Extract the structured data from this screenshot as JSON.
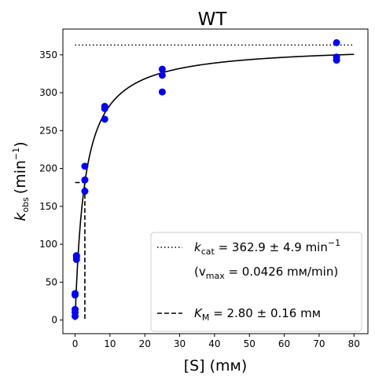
{
  "chart_data": {
    "type": "scatter",
    "title": "WT",
    "xlabel": "[S] (mм)",
    "ylabel": {
      "symbol": "k",
      "subscript": "obs",
      "unit_prefix": "(min",
      "unit_exp": "−1",
      "unit_suffix": ")"
    },
    "xlim": [
      -3.5,
      84
    ],
    "ylim": [
      -18,
      384
    ],
    "xticks": [
      0,
      10,
      20,
      30,
      40,
      50,
      60,
      70,
      80
    ],
    "yticks": [
      0,
      50,
      100,
      150,
      200,
      250,
      300,
      350
    ],
    "grid": false,
    "legend_position": "lower-right",
    "series": [
      {
        "type": "scatter",
        "color": "#0000ff",
        "points": [
          [
            0,
            5
          ],
          [
            0,
            10
          ],
          [
            0,
            14
          ],
          [
            0,
            33
          ],
          [
            0,
            35
          ],
          [
            0.4,
            80
          ],
          [
            0.4,
            83
          ],
          [
            0.4,
            85
          ],
          [
            2.8,
            170
          ],
          [
            2.8,
            185
          ],
          [
            2.8,
            203
          ],
          [
            8.5,
            265
          ],
          [
            8.5,
            279
          ],
          [
            8.5,
            282
          ],
          [
            25,
            301
          ],
          [
            25,
            323
          ],
          [
            25,
            331
          ],
          [
            75,
            343
          ],
          [
            75,
            347
          ],
          [
            75,
            366
          ]
        ]
      }
    ],
    "fit": {
      "type": "michaelis-menten",
      "kcat": 362.9,
      "km": 2.8,
      "x_range": [
        0,
        80
      ],
      "color": "#000000"
    },
    "kcat_line": {
      "y": 362.9,
      "x_range": [
        0,
        80
      ],
      "style": "dotted"
    },
    "km_guide": {
      "x": 2.8,
      "y": 181.45,
      "x_start": 0,
      "style": "dashed"
    },
    "legend": [
      {
        "style": "dotted",
        "symbol": "k",
        "subscript": "cat",
        "text": " = 362.9 ± 4.9 min",
        "exp": "−1"
      },
      {
        "style": "none",
        "text": "(v",
        "subscript": "max",
        "suffix": " = 0.0426 mм/min)"
      },
      {
        "style": "dashed",
        "symbol": "K",
        "subscript": "M",
        "text": " = 2.80 ± 0.16 mм"
      }
    ]
  }
}
